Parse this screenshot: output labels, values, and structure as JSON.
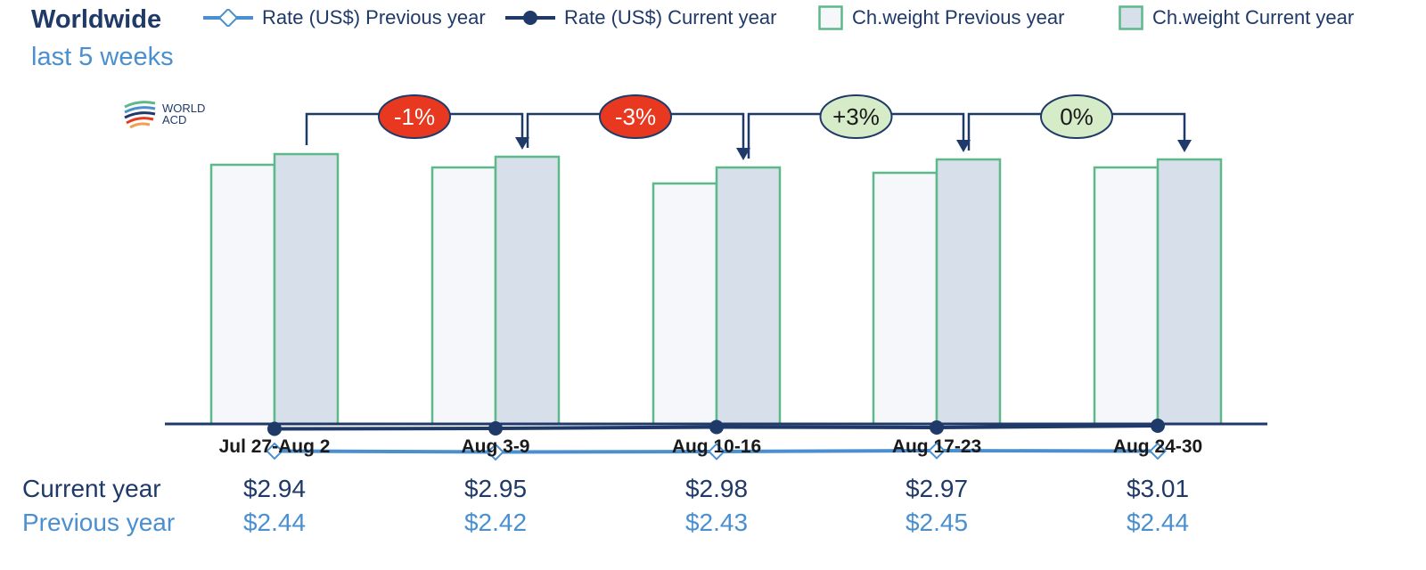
{
  "header": {
    "title": "Worldwide",
    "subtitle": "last 5 weeks"
  },
  "legend": [
    {
      "label": "Rate (US$) Previous year",
      "icon": "line-diamond-marker",
      "color": "#4a8fd0"
    },
    {
      "label": "Rate (US$) Current year",
      "icon": "line-circle-marker",
      "color": "#1f3a68"
    },
    {
      "label": "Ch.weight Previous year",
      "icon": "bar-swatch",
      "color": "#f5f7fb"
    },
    {
      "label": "Ch.weight Current year",
      "icon": "bar-swatch",
      "color": "#d6dfea"
    }
  ],
  "logo": {
    "line1": "WORLD",
    "line2": "ACD"
  },
  "table": {
    "current_label": "Current year",
    "previous_label": "Previous year",
    "current": [
      "$2.94",
      "$2.95",
      "$2.98",
      "$2.97",
      "$3.01"
    ],
    "previous": [
      "$2.44",
      "$2.42",
      "$2.43",
      "$2.45",
      "$2.44"
    ]
  },
  "changes": [
    {
      "label": "-1%",
      "color": "#e8381f",
      "text_color": "#ffffff"
    },
    {
      "label": "-3%",
      "color": "#e8381f",
      "text_color": "#ffffff"
    },
    {
      "label": "+3%",
      "color": "#d6ebc8",
      "text_color": "#1a1a1a"
    },
    {
      "label": "0%",
      "color": "#d6ebc8",
      "text_color": "#1a1a1a"
    }
  ],
  "chart_data": {
    "type": "bar",
    "categories": [
      "Jul 27-Aug 2",
      "Aug 3-9",
      "Aug 10-16",
      "Aug 17-23",
      "Aug 24-30"
    ],
    "series": [
      {
        "name": "Ch.weight Previous year",
        "type": "bar",
        "values": [
          0.97,
          0.96,
          0.9,
          0.94,
          0.96
        ]
      },
      {
        "name": "Ch.weight Current year",
        "type": "bar",
        "values": [
          1.01,
          1.0,
          0.96,
          0.99,
          0.99
        ]
      },
      {
        "name": "Rate (US$) Current year",
        "type": "line",
        "values": [
          2.94,
          2.95,
          2.98,
          2.97,
          3.01
        ]
      },
      {
        "name": "Rate (US$) Previous year",
        "type": "line",
        "values": [
          2.44,
          2.42,
          2.43,
          2.45,
          2.44
        ]
      }
    ],
    "colors": {
      "bar_prev": "#f5f7fb",
      "bar_cur": "#d6dfea",
      "bar_border": "#5db88a",
      "line_cur": "#1f3a68",
      "line_prev": "#4a8fd0",
      "axis": "#1f3a68"
    }
  }
}
